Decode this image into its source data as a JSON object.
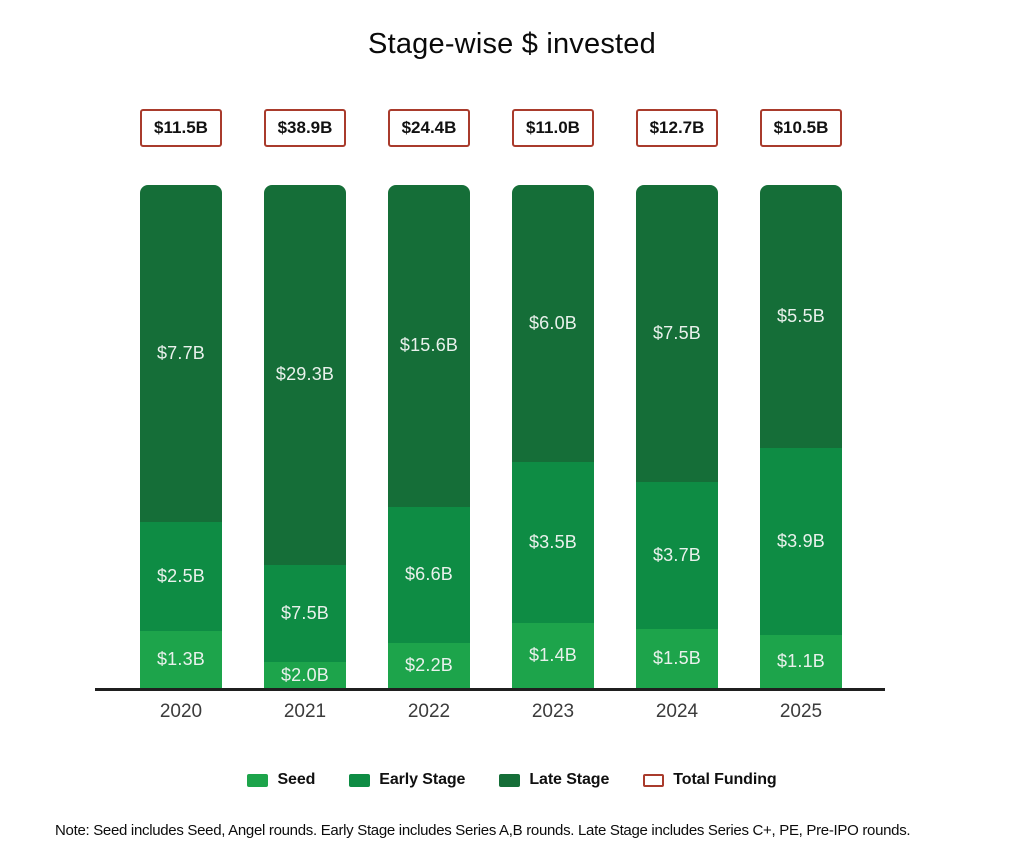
{
  "title": "Stage-wise $ invested",
  "colors": {
    "seed": "#1da44b",
    "early_stage": "#0e8c44",
    "late_stage": "#156e38",
    "total_border": "#a93b2c",
    "axis": "#1f1f1f",
    "segment_label_text": "#e9f1ec",
    "year_label_text": "#3b3b3b"
  },
  "chart_data": {
    "type": "bar",
    "stacked": "percent",
    "title": "Stage-wise $ invested",
    "xlabel": "",
    "ylabel": "",
    "grid": false,
    "legend_position": "bottom",
    "categories": [
      "2020",
      "2021",
      "2022",
      "2023",
      "2024",
      "2025"
    ],
    "series": [
      {
        "name": "Seed",
        "color": "#1da44b",
        "values": [
          1.3,
          2.0,
          2.2,
          1.4,
          1.5,
          1.1
        ],
        "labels": [
          "$1.3B",
          "$2.0B",
          "$2.2B",
          "$1.4B",
          "$1.5B",
          "$1.1B"
        ]
      },
      {
        "name": "Early Stage",
        "color": "#0e8c44",
        "values": [
          2.5,
          7.5,
          6.6,
          3.5,
          3.7,
          3.9
        ],
        "labels": [
          "$2.5B",
          "$7.5B",
          "$6.6B",
          "$3.5B",
          "$3.7B",
          "$3.9B"
        ]
      },
      {
        "name": "Late Stage",
        "color": "#156e38",
        "values": [
          7.7,
          29.3,
          15.6,
          6.0,
          7.5,
          5.5
        ],
        "labels": [
          "$7.7B",
          "$29.3B",
          "$15.6B",
          "$6.0B",
          "$7.5B",
          "$5.5B"
        ]
      }
    ],
    "totals": {
      "name": "Total Funding",
      "values": [
        11.5,
        38.9,
        24.4,
        11.0,
        12.7,
        10.5
      ],
      "labels": [
        "$11.5B",
        "$38.9B",
        "$24.4B",
        "$11.0B",
        "$12.7B",
        "$10.5B"
      ]
    }
  },
  "legend": {
    "items": [
      {
        "label": "Seed",
        "color": "#1da44b",
        "style": "fill"
      },
      {
        "label": "Early Stage",
        "color": "#0e8c44",
        "style": "fill"
      },
      {
        "label": "Late Stage",
        "color": "#156e38",
        "style": "fill"
      },
      {
        "label": "Total Funding",
        "color": "#a93b2c",
        "style": "outline"
      }
    ]
  },
  "note": "Note: Seed includes Seed, Angel rounds. Early Stage includes Series A,B rounds. Late Stage includes Series C+, PE, Pre-IPO rounds."
}
